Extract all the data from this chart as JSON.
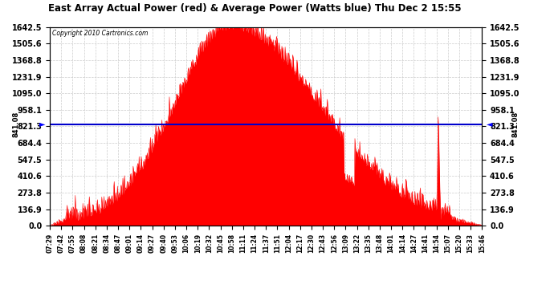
{
  "title": "East Array Actual Power (red) & Average Power (Watts blue) Thu Dec 2 15:55",
  "copyright": "Copyright 2010 Cartronics.com",
  "avg_power": 841.08,
  "y_max": 1642.5,
  "y_min": 0.0,
  "y_ticks": [
    0.0,
    136.9,
    273.8,
    410.6,
    547.5,
    684.4,
    821.3,
    958.1,
    1095.0,
    1231.9,
    1368.8,
    1505.6,
    1642.5
  ],
  "x_labels": [
    "07:29",
    "07:42",
    "07:55",
    "08:08",
    "08:21",
    "08:34",
    "08:47",
    "09:01",
    "09:14",
    "09:27",
    "09:40",
    "09:53",
    "10:06",
    "10:19",
    "10:32",
    "10:45",
    "10:58",
    "11:11",
    "11:24",
    "11:37",
    "11:51",
    "12:04",
    "12:17",
    "12:30",
    "12:43",
    "12:56",
    "13:09",
    "13:22",
    "13:35",
    "13:48",
    "14:01",
    "14:14",
    "14:27",
    "14:41",
    "14:54",
    "15:07",
    "15:20",
    "15:33",
    "15:46"
  ],
  "bg_color": "#ffffff",
  "line_color_red": "#ff0000",
  "line_color_blue": "#0000cc",
  "grid_color": "#cccccc"
}
